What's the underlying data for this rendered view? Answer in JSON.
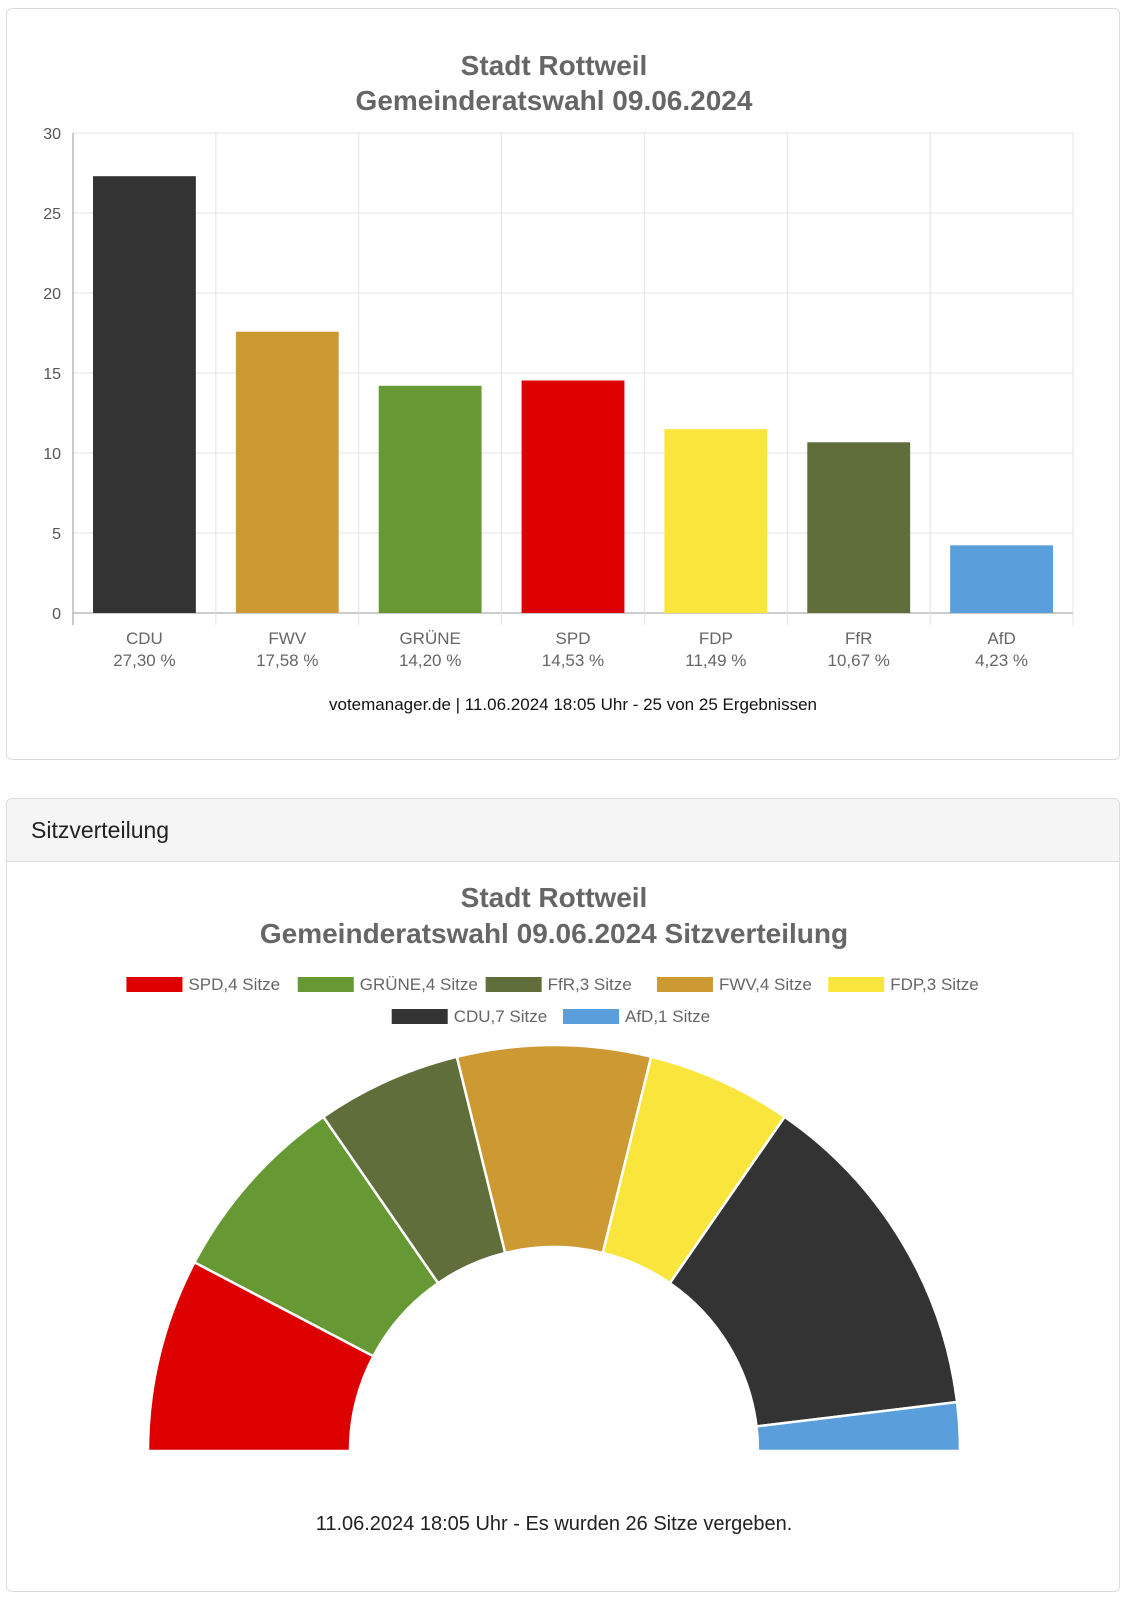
{
  "bar_card": {
    "footer": "votemanager.de | 11.06.2024 18:05 Uhr - 25 von 25 Ergebnissen"
  },
  "seat_card": {
    "header": "Sitzverteilung",
    "footer": "11.06.2024 18:05 Uhr - Es wurden 26 Sitze vergeben."
  },
  "chart_data": [
    {
      "type": "bar",
      "title": [
        "Stadt Rottweil",
        "Gemeinderatswahl 09.06.2024"
      ],
      "categories": [
        "CDU",
        "FWV",
        "GRÜNE",
        "SPD",
        "FDP",
        "FfR",
        "AfD"
      ],
      "category_labels": [
        "27,30 %",
        "17,58 %",
        "14,20 %",
        "14,53 %",
        "11,49 %",
        "10,67 %",
        "4,23 %"
      ],
      "values": [
        27.3,
        17.58,
        14.2,
        14.53,
        11.49,
        10.67,
        4.23
      ],
      "colors": [
        "#333333",
        "#cc9933",
        "#669933",
        "#dd0000",
        "#f9e53b",
        "#5f6e3b",
        "#5a9edb"
      ],
      "yticks": [
        0,
        5,
        10,
        15,
        20,
        25,
        30
      ],
      "ylim": [
        0,
        30
      ],
      "xlabel": "",
      "ylabel": "",
      "grid": true
    },
    {
      "type": "pie",
      "subtype": "half-donut",
      "title": [
        "Stadt Rottweil",
        "Gemeinderatswahl 09.06.2024 Sitzverteilung"
      ],
      "legend_position": "top",
      "series": [
        {
          "name": "SPD",
          "label": "SPD,4 Sitze",
          "value": 4,
          "color": "#dd0000"
        },
        {
          "name": "GRÜNE",
          "label": "GRÜNE,4 Sitze",
          "value": 4,
          "color": "#669933"
        },
        {
          "name": "FfR",
          "label": "FfR,3 Sitze",
          "value": 3,
          "color": "#5f6e3b"
        },
        {
          "name": "FWV",
          "label": "FWV,4 Sitze",
          "value": 4,
          "color": "#cc9933"
        },
        {
          "name": "FDP",
          "label": "FDP,3 Sitze",
          "value": 3,
          "color": "#f9e53b"
        },
        {
          "name": "CDU",
          "label": "CDU,7 Sitze",
          "value": 7,
          "color": "#333333"
        },
        {
          "name": "AfD",
          "label": "AfD,1 Sitze",
          "value": 1,
          "color": "#5a9edb"
        }
      ],
      "total": 26
    }
  ]
}
